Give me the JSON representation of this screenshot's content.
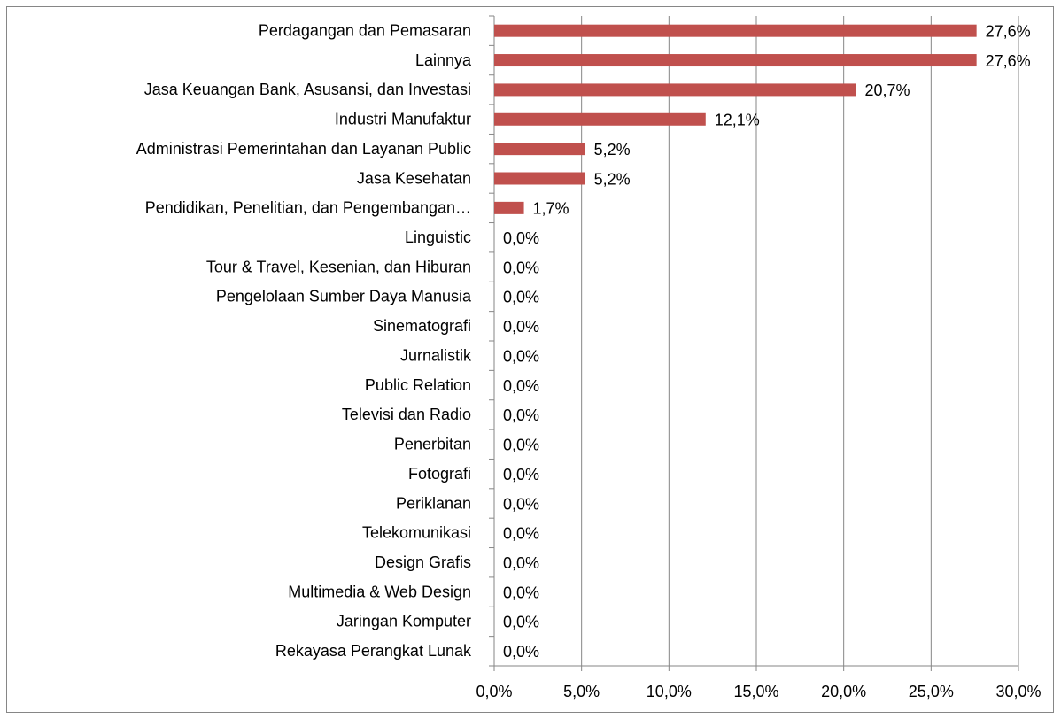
{
  "chart_data": {
    "type": "hbar",
    "categories": [
      "Perdagangan dan Pemasaran",
      "Lainnya",
      "Jasa Keuangan Bank, Asusansi, dan Investasi",
      "Industri Manufaktur",
      "Administrasi Pemerintahan dan Layanan Public",
      "Jasa Kesehatan",
      "Pendidikan, Penelitian, dan Pengembangan…",
      "Linguistic",
      "Tour & Travel, Kesenian, dan Hiburan",
      "Pengelolaan Sumber Daya Manusia",
      "Sinematografi",
      "Jurnalistik",
      "Public Relation",
      "Televisi dan Radio",
      "Penerbitan",
      "Fotografi",
      "Periklanan",
      "Telekomunikasi",
      "Design Grafis",
      "Multimedia & Web Design",
      "Jaringan Komputer",
      "Rekayasa Perangkat Lunak"
    ],
    "values": [
      27.6,
      27.6,
      20.7,
      12.1,
      5.2,
      5.2,
      1.7,
      0,
      0,
      0,
      0,
      0,
      0,
      0,
      0,
      0,
      0,
      0,
      0,
      0,
      0,
      0
    ],
    "value_labels": [
      "27,6%",
      "27,6%",
      "20,7%",
      "12,1%",
      "5,2%",
      "5,2%",
      "1,7%",
      "0,0%",
      "0,0%",
      "0,0%",
      "0,0%",
      "0,0%",
      "0,0%",
      "0,0%",
      "0,0%",
      "0,0%",
      "0,0%",
      "0,0%",
      "0,0%",
      "0,0%",
      "0,0%",
      "0,0%"
    ],
    "color": "#c0504d",
    "xlim": [
      0,
      30
    ],
    "xticks": [
      {
        "value": 0,
        "label": "0,0%"
      },
      {
        "value": 5,
        "label": "5,0%"
      },
      {
        "value": 10,
        "label": "10,0%"
      },
      {
        "value": 15,
        "label": "15,0%"
      },
      {
        "value": 20,
        "label": "20,0%"
      },
      {
        "value": 25,
        "label": "25,0%"
      },
      {
        "value": 30,
        "label": "30,0%"
      }
    ],
    "grid": true
  }
}
